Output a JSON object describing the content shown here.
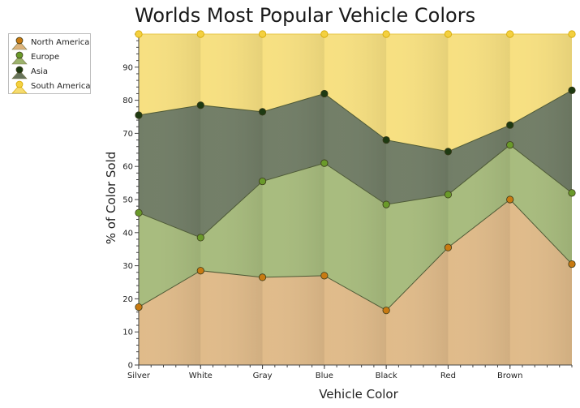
{
  "chart_data": {
    "type": "area",
    "stacked": true,
    "title": "Worlds Most Popular Vehicle Colors",
    "xlabel": "Vehicle Color",
    "ylabel": "% of Color Sold",
    "categories": [
      "Silver",
      "White",
      "Gray",
      "Blue",
      "Black",
      "Red",
      "Brown",
      ""
    ],
    "ylim": [
      0,
      100
    ],
    "yticks": [
      0,
      10,
      20,
      30,
      40,
      50,
      60,
      70,
      80,
      90
    ],
    "legend_position": "top-left",
    "series": [
      {
        "name": "North America",
        "color": "#dcb27a",
        "marker": "#c87a12",
        "values": [
          17.5,
          28.5,
          26.5,
          27,
          16.5,
          35.5,
          50,
          30.5
        ]
      },
      {
        "name": "Europe",
        "color": "#9cb36c",
        "marker": "#6a9a2a",
        "values": [
          46,
          38.5,
          55.5,
          61,
          48.5,
          51.5,
          66.5,
          52
        ]
      },
      {
        "name": "Asia",
        "color": "#66735a",
        "marker": "#1e3a12",
        "values": [
          75.5,
          78.5,
          76.5,
          82,
          68,
          64.5,
          72.5,
          83
        ]
      },
      {
        "name": "South America",
        "color": "#f6dc70",
        "marker": "#f4d040",
        "values": [
          100,
          100,
          100,
          100,
          100,
          100,
          100,
          100
        ]
      }
    ]
  }
}
